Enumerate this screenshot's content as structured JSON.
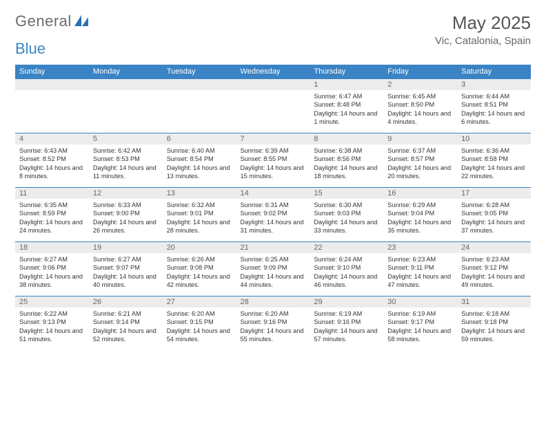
{
  "logo": {
    "word1": "General",
    "word2": "Blue"
  },
  "header": {
    "month_title": "May 2025",
    "location": "Vic, Catalonia, Spain"
  },
  "colors": {
    "header_bg": "#3a83c4",
    "header_fg": "#ffffff",
    "daynum_bg": "#ececec",
    "daynum_fg": "#666666",
    "rule": "#3a83c4",
    "text": "#333333",
    "logo_gray": "#6b6b6b",
    "logo_blue": "#3a83c4"
  },
  "weekdays": [
    "Sunday",
    "Monday",
    "Tuesday",
    "Wednesday",
    "Thursday",
    "Friday",
    "Saturday"
  ],
  "weeks": [
    [
      {
        "blank": true
      },
      {
        "blank": true
      },
      {
        "blank": true
      },
      {
        "blank": true
      },
      {
        "day": "1",
        "sunrise": "Sunrise: 6:47 AM",
        "sunset": "Sunset: 8:48 PM",
        "daylight": "Daylight: 14 hours and 1 minute."
      },
      {
        "day": "2",
        "sunrise": "Sunrise: 6:45 AM",
        "sunset": "Sunset: 8:50 PM",
        "daylight": "Daylight: 14 hours and 4 minutes."
      },
      {
        "day": "3",
        "sunrise": "Sunrise: 6:44 AM",
        "sunset": "Sunset: 8:51 PM",
        "daylight": "Daylight: 14 hours and 6 minutes."
      }
    ],
    [
      {
        "day": "4",
        "sunrise": "Sunrise: 6:43 AM",
        "sunset": "Sunset: 8:52 PM",
        "daylight": "Daylight: 14 hours and 8 minutes."
      },
      {
        "day": "5",
        "sunrise": "Sunrise: 6:42 AM",
        "sunset": "Sunset: 8:53 PM",
        "daylight": "Daylight: 14 hours and 11 minutes."
      },
      {
        "day": "6",
        "sunrise": "Sunrise: 6:40 AM",
        "sunset": "Sunset: 8:54 PM",
        "daylight": "Daylight: 14 hours and 13 minutes."
      },
      {
        "day": "7",
        "sunrise": "Sunrise: 6:39 AM",
        "sunset": "Sunset: 8:55 PM",
        "daylight": "Daylight: 14 hours and 15 minutes."
      },
      {
        "day": "8",
        "sunrise": "Sunrise: 6:38 AM",
        "sunset": "Sunset: 8:56 PM",
        "daylight": "Daylight: 14 hours and 18 minutes."
      },
      {
        "day": "9",
        "sunrise": "Sunrise: 6:37 AM",
        "sunset": "Sunset: 8:57 PM",
        "daylight": "Daylight: 14 hours and 20 minutes."
      },
      {
        "day": "10",
        "sunrise": "Sunrise: 6:36 AM",
        "sunset": "Sunset: 8:58 PM",
        "daylight": "Daylight: 14 hours and 22 minutes."
      }
    ],
    [
      {
        "day": "11",
        "sunrise": "Sunrise: 6:35 AM",
        "sunset": "Sunset: 8:59 PM",
        "daylight": "Daylight: 14 hours and 24 minutes."
      },
      {
        "day": "12",
        "sunrise": "Sunrise: 6:33 AM",
        "sunset": "Sunset: 9:00 PM",
        "daylight": "Daylight: 14 hours and 26 minutes."
      },
      {
        "day": "13",
        "sunrise": "Sunrise: 6:32 AM",
        "sunset": "Sunset: 9:01 PM",
        "daylight": "Daylight: 14 hours and 28 minutes."
      },
      {
        "day": "14",
        "sunrise": "Sunrise: 6:31 AM",
        "sunset": "Sunset: 9:02 PM",
        "daylight": "Daylight: 14 hours and 31 minutes."
      },
      {
        "day": "15",
        "sunrise": "Sunrise: 6:30 AM",
        "sunset": "Sunset: 9:03 PM",
        "daylight": "Daylight: 14 hours and 33 minutes."
      },
      {
        "day": "16",
        "sunrise": "Sunrise: 6:29 AM",
        "sunset": "Sunset: 9:04 PM",
        "daylight": "Daylight: 14 hours and 35 minutes."
      },
      {
        "day": "17",
        "sunrise": "Sunrise: 6:28 AM",
        "sunset": "Sunset: 9:05 PM",
        "daylight": "Daylight: 14 hours and 37 minutes."
      }
    ],
    [
      {
        "day": "18",
        "sunrise": "Sunrise: 6:27 AM",
        "sunset": "Sunset: 9:06 PM",
        "daylight": "Daylight: 14 hours and 38 minutes."
      },
      {
        "day": "19",
        "sunrise": "Sunrise: 6:27 AM",
        "sunset": "Sunset: 9:07 PM",
        "daylight": "Daylight: 14 hours and 40 minutes."
      },
      {
        "day": "20",
        "sunrise": "Sunrise: 6:26 AM",
        "sunset": "Sunset: 9:08 PM",
        "daylight": "Daylight: 14 hours and 42 minutes."
      },
      {
        "day": "21",
        "sunrise": "Sunrise: 6:25 AM",
        "sunset": "Sunset: 9:09 PM",
        "daylight": "Daylight: 14 hours and 44 minutes."
      },
      {
        "day": "22",
        "sunrise": "Sunrise: 6:24 AM",
        "sunset": "Sunset: 9:10 PM",
        "daylight": "Daylight: 14 hours and 46 minutes."
      },
      {
        "day": "23",
        "sunrise": "Sunrise: 6:23 AM",
        "sunset": "Sunset: 9:11 PM",
        "daylight": "Daylight: 14 hours and 47 minutes."
      },
      {
        "day": "24",
        "sunrise": "Sunrise: 6:23 AM",
        "sunset": "Sunset: 9:12 PM",
        "daylight": "Daylight: 14 hours and 49 minutes."
      }
    ],
    [
      {
        "day": "25",
        "sunrise": "Sunrise: 6:22 AM",
        "sunset": "Sunset: 9:13 PM",
        "daylight": "Daylight: 14 hours and 51 minutes."
      },
      {
        "day": "26",
        "sunrise": "Sunrise: 6:21 AM",
        "sunset": "Sunset: 9:14 PM",
        "daylight": "Daylight: 14 hours and 52 minutes."
      },
      {
        "day": "27",
        "sunrise": "Sunrise: 6:20 AM",
        "sunset": "Sunset: 9:15 PM",
        "daylight": "Daylight: 14 hours and 54 minutes."
      },
      {
        "day": "28",
        "sunrise": "Sunrise: 6:20 AM",
        "sunset": "Sunset: 9:16 PM",
        "daylight": "Daylight: 14 hours and 55 minutes."
      },
      {
        "day": "29",
        "sunrise": "Sunrise: 6:19 AM",
        "sunset": "Sunset: 9:16 PM",
        "daylight": "Daylight: 14 hours and 57 minutes."
      },
      {
        "day": "30",
        "sunrise": "Sunrise: 6:19 AM",
        "sunset": "Sunset: 9:17 PM",
        "daylight": "Daylight: 14 hours and 58 minutes."
      },
      {
        "day": "31",
        "sunrise": "Sunrise: 6:18 AM",
        "sunset": "Sunset: 9:18 PM",
        "daylight": "Daylight: 14 hours and 59 minutes."
      }
    ]
  ]
}
